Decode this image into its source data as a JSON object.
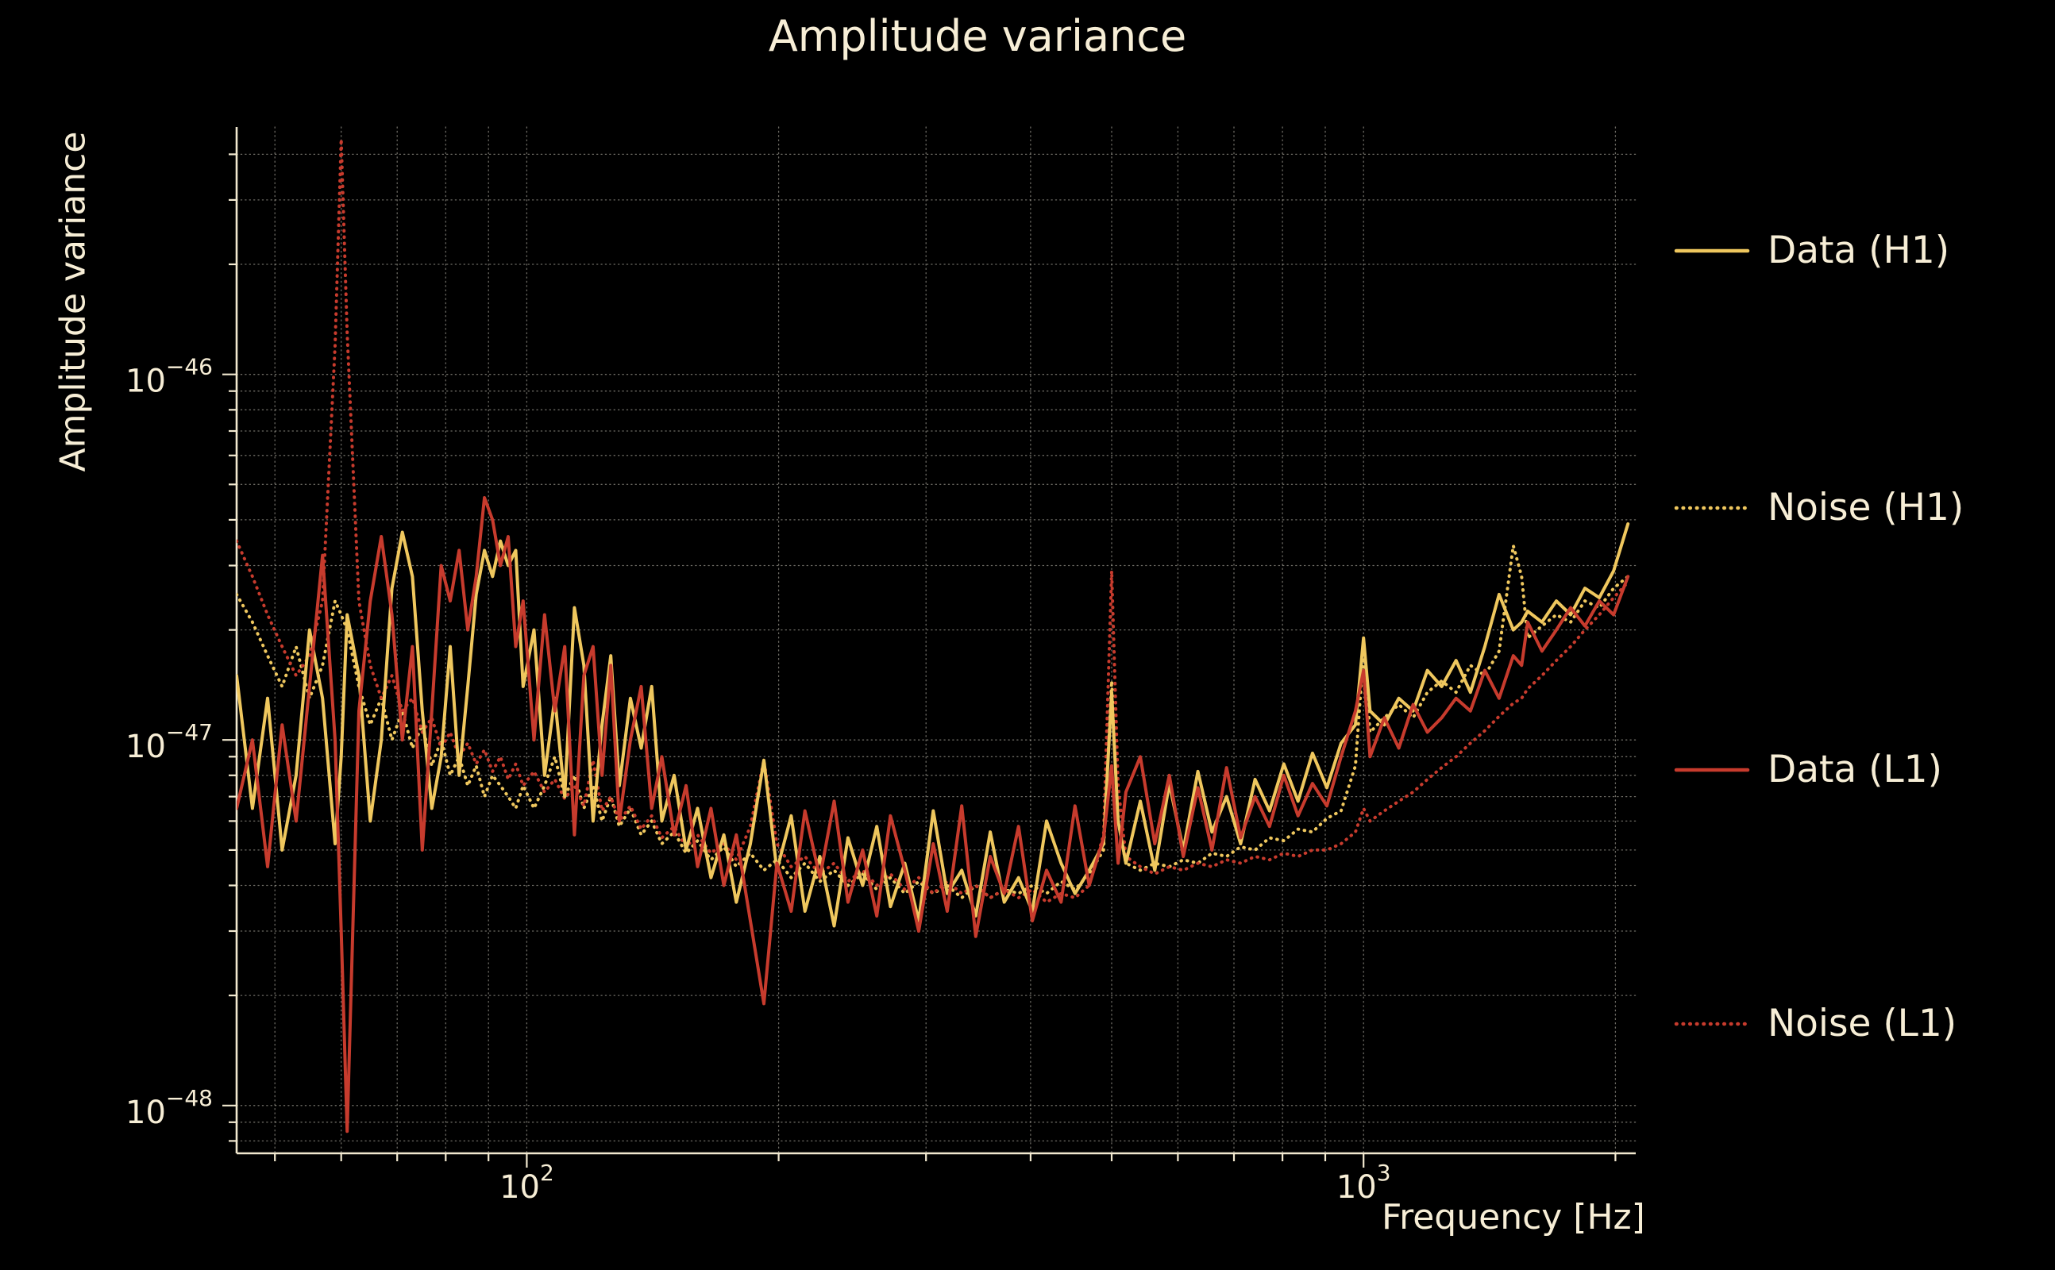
{
  "chart_data": {
    "type": "line",
    "title": "Amplitude variance",
    "xlabel": "Frequency [Hz]",
    "ylabel": "Amplitude variance",
    "x_axis_scale": "log",
    "y_axis_scale": "log",
    "xlim": [
      45,
      2115
    ],
    "ylim": [
      7.4e-49,
      4.75e-46
    ],
    "grid": true,
    "legend_position": "right",
    "background_color": "#000000",
    "text_color": "#f7eed6",
    "axis_color": "#f2e9d0",
    "grid_color": "rgba(245,240,225,0.45)",
    "x_ticks": [
      {
        "value": 100,
        "base": "10",
        "exp": "2"
      },
      {
        "value": 1000,
        "base": "10",
        "exp": "3"
      }
    ],
    "y_ticks": [
      {
        "value": 1e-46,
        "base": "10",
        "exp": "−46"
      },
      {
        "value": 1e-47,
        "base": "10",
        "exp": "−47"
      },
      {
        "value": 1e-48,
        "base": "10",
        "exp": "−48"
      }
    ],
    "y_scale": 1e-48,
    "x": [
      45,
      47,
      49,
      51,
      53,
      55,
      57,
      59,
      60,
      61,
      63,
      65,
      67,
      69,
      71,
      73,
      75,
      77,
      79,
      81,
      83,
      85,
      87,
      89,
      91,
      93,
      95,
      97,
      99,
      102,
      105,
      108,
      111,
      114,
      117,
      120,
      123,
      126,
      129,
      133,
      137,
      141,
      145,
      150,
      155,
      160,
      166,
      172,
      178,
      185,
      192,
      199,
      207,
      215,
      224,
      233,
      242,
      252,
      262,
      272,
      283,
      294,
      306,
      318,
      331,
      344,
      358,
      372,
      387,
      402,
      418,
      435,
      452,
      470,
      489,
      500,
      509,
      520,
      541,
      563,
      586,
      609,
      634,
      659,
      686,
      713,
      742,
      772,
      803,
      835,
      869,
      904,
      940,
      978,
      1000,
      1018,
      1059,
      1102,
      1146,
      1192,
      1240,
      1290,
      1342,
      1396,
      1452,
      1510,
      1545,
      1571,
      1634,
      1700,
      1768,
      1839,
      1913,
      1990,
      2070
    ],
    "series": [
      {
        "name": "Data (H1)",
        "color": "#efc75e",
        "line_style": "solid",
        "values": [
          15,
          6.5,
          13,
          5,
          8,
          20,
          13,
          5.2,
          9,
          22,
          15,
          6,
          10,
          26,
          37,
          28,
          12,
          6.5,
          9,
          18,
          8,
          14,
          25,
          33,
          28,
          35,
          30,
          33,
          14,
          20,
          8,
          13,
          7,
          23,
          16,
          6,
          11,
          17,
          7.5,
          13,
          9.5,
          14,
          6,
          8,
          5,
          6.5,
          4.2,
          5.5,
          3.6,
          5.2,
          8.8,
          4.4,
          6.2,
          3.4,
          4.8,
          3.1,
          5.4,
          4,
          5.8,
          3.5,
          4.6,
          3.2,
          6.4,
          3.8,
          4.4,
          3.3,
          5.6,
          3.6,
          4.2,
          3.4,
          6,
          4.6,
          3.8,
          4.4,
          5.2,
          13.5,
          6,
          4.6,
          6.8,
          4.4,
          7.6,
          5,
          8.2,
          5.6,
          7,
          5.2,
          7.8,
          6.4,
          8.6,
          6.8,
          9.2,
          7.4,
          9.8,
          11,
          19,
          12,
          11,
          13,
          12,
          15.5,
          14,
          16.5,
          13.5,
          18,
          25,
          20,
          21,
          22.5,
          21,
          24,
          22,
          26,
          24.5,
          29,
          39
        ]
      },
      {
        "name": "Noise (H1)",
        "color": "#efc75e",
        "line_style": "dotted",
        "values": [
          25,
          21,
          17,
          14,
          18,
          13,
          16,
          24,
          22,
          20,
          14,
          11,
          13,
          10,
          12,
          9.5,
          11,
          8.5,
          10,
          8,
          9,
          7.5,
          8.5,
          7,
          8,
          7.5,
          7,
          6.5,
          7.5,
          6.5,
          7.5,
          9,
          7,
          8,
          6.5,
          7.5,
          6,
          7,
          5.8,
          6.5,
          5.5,
          6,
          5.2,
          5.6,
          4.9,
          5.3,
          4.7,
          5.1,
          4.5,
          4.9,
          4.4,
          4.7,
          4.2,
          4.6,
          4.1,
          4.4,
          4,
          4.3,
          3.9,
          4.2,
          3.8,
          4.1,
          3.8,
          4,
          3.7,
          4,
          3.7,
          3.9,
          3.8,
          4,
          3.8,
          4.1,
          3.9,
          4.3,
          5,
          14.5,
          6,
          4.6,
          4.4,
          4.6,
          4.5,
          4.7,
          4.6,
          4.9,
          4.8,
          5.1,
          5,
          5.4,
          5.3,
          5.7,
          5.6,
          6.1,
          6.4,
          8.5,
          17.5,
          10.5,
          11.5,
          12.5,
          11.5,
          13.5,
          14.5,
          13.5,
          16,
          15,
          17.5,
          34,
          28,
          19,
          20.5,
          22,
          21,
          24,
          23,
          26,
          28
        ]
      },
      {
        "name": "Data (L1)",
        "color": "#c73b2d",
        "line_style": "solid",
        "values": [
          6.5,
          10,
          4.5,
          11,
          6,
          14,
          32,
          10,
          3,
          0.85,
          12,
          24,
          36,
          22,
          10,
          18,
          5,
          12,
          30,
          24,
          33,
          20,
          28,
          46,
          40,
          30,
          36,
          18,
          24,
          10,
          22,
          12,
          18,
          5.5,
          15,
          18,
          8,
          16,
          6,
          10,
          14,
          6.5,
          9,
          5.5,
          7.5,
          4.5,
          6.5,
          4,
          5.5,
          3.2,
          1.9,
          4.6,
          3.4,
          6.4,
          4.2,
          6.8,
          3.6,
          5,
          3.3,
          6.2,
          4.4,
          3,
          5.2,
          3.4,
          6.6,
          2.9,
          4.8,
          3.8,
          5.8,
          3.2,
          4.4,
          3.6,
          6.6,
          4,
          5.4,
          8.5,
          4.6,
          7.2,
          9,
          5.2,
          8,
          4.8,
          7.4,
          5,
          8.4,
          5.4,
          7,
          5.8,
          8,
          6.2,
          7.6,
          6.6,
          9,
          12,
          15.5,
          9,
          11.5,
          9.5,
          12.5,
          10.5,
          11.5,
          13,
          12,
          15.5,
          13,
          17,
          16,
          21,
          17.5,
          20,
          23,
          20.5,
          24,
          22,
          28
        ]
      },
      {
        "name": "Noise (L1)",
        "color": "#c73b2d",
        "line_style": "dotted",
        "values": [
          35,
          28,
          22,
          18,
          15,
          17,
          24,
          120,
          440,
          130,
          24,
          16,
          13,
          15,
          12,
          13,
          10.5,
          11.5,
          9.5,
          10.5,
          9,
          9.8,
          8.6,
          9.4,
          8.2,
          9,
          7.8,
          8.6,
          7.5,
          8.2,
          7.2,
          7.8,
          6.9,
          7.5,
          6.6,
          8.8,
          6.4,
          7,
          6,
          6.6,
          5.7,
          6.2,
          5.4,
          5.8,
          5.1,
          5.5,
          4.9,
          5.2,
          4.7,
          5.8,
          8.8,
          5.2,
          4.5,
          4.8,
          4.3,
          4.6,
          4.1,
          4.4,
          4,
          4.3,
          3.9,
          4.2,
          3.8,
          4.1,
          3.8,
          4,
          3.7,
          3.9,
          3.7,
          3.9,
          3.6,
          3.8,
          3.7,
          4,
          5.5,
          29,
          7.5,
          4.8,
          4.5,
          4.3,
          4.5,
          4.4,
          4.6,
          4.5,
          4.7,
          4.6,
          4.8,
          4.7,
          4.9,
          4.8,
          5,
          5,
          5.2,
          5.6,
          6.5,
          6,
          6.4,
          6.8,
          7.2,
          7.8,
          8.4,
          9,
          9.8,
          10.6,
          11.6,
          12.6,
          13,
          13.8,
          15,
          16.5,
          18,
          20,
          22,
          24.5,
          27
        ]
      }
    ]
  }
}
